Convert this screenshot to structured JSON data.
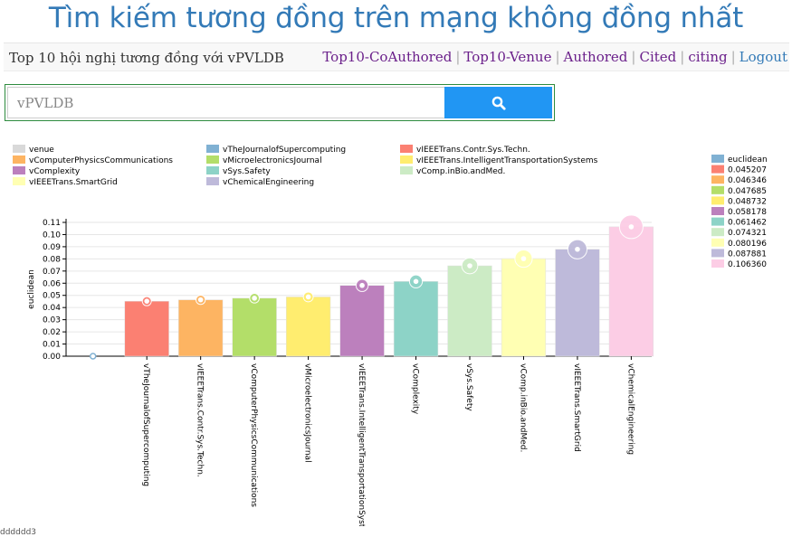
{
  "page": {
    "title": "Tìm kiếm tương đồng trên mạng không đồng nhất",
    "subtitle": "Top 10 hội nghị tương đồng với vPVLDB",
    "footer_text": "dddddd3"
  },
  "nav": {
    "items": [
      "Top10-CoAuthored",
      "Top10-Venue",
      "Authored",
      "Cited",
      "citing",
      "Logout"
    ],
    "separator": "|"
  },
  "search": {
    "placeholder": "vPVLDB",
    "value": ""
  },
  "colors": {
    "title": "#337ab7",
    "search_button": "#2196f3",
    "nav_link": "#6a1f8a"
  },
  "chart_data": {
    "type": "bar",
    "ylabel": "euclidean",
    "ylim": [
      0,
      0.11
    ],
    "yticks": [
      "0.00",
      "0.01",
      "0.02",
      "0.03",
      "0.04",
      "0.05",
      "0.06",
      "0.07",
      "0.08",
      "0.09",
      "0.10",
      "0.11"
    ],
    "categories": [
      "vTheJournalofSupercomputing",
      "vIEEETrans.Contr.Sys.Techn.",
      "vComputerPhysicsCommunications",
      "vMicroelectronicsJournal",
      "vIEEETrans.IntelligentTransportationSystems",
      "vComplexity",
      "vSys.Safety",
      "vComp.inBio.andMed.",
      "vIEEETrans.SmartGrid",
      "vChemicalEngineering"
    ],
    "values": [
      0.045207,
      0.046346,
      0.047685,
      0.048732,
      0.058178,
      0.061462,
      0.074321,
      0.080196,
      0.087881,
      0.10636
    ],
    "bar_colors": [
      "#fb8072",
      "#fdb462",
      "#b3de69",
      "#ffed6f",
      "#bc80bd",
      "#8dd3c7",
      "#ccebc5",
      "#ffffb3",
      "#bebada",
      "#fccde5"
    ],
    "origin_point": 0,
    "top_legend": {
      "title": "venue",
      "entries": [
        {
          "label": "venue",
          "color": "#d9d9d9"
        },
        {
          "label": "vTheJournalofSupercomputing",
          "color": "#80b1d3"
        },
        {
          "label": "vIEEETrans.Contr.Sys.Techn.",
          "color": "#fb8072"
        },
        {
          "label": "vComputerPhysicsCommunications",
          "color": "#fdb462"
        },
        {
          "label": "vMicroelectronicsJournal",
          "color": "#b3de69"
        },
        {
          "label": "vIEEETrans.IntelligentTransportationSystems",
          "color": "#ffed6f"
        },
        {
          "label": "vComplexity",
          "color": "#bc80bd"
        },
        {
          "label": "vSys.Safety",
          "color": "#8dd3c7"
        },
        {
          "label": "vComp.inBio.andMed.",
          "color": "#ccebc5"
        },
        {
          "label": "vIEEETrans.SmartGrid",
          "color": "#ffffb3"
        },
        {
          "label": "vChemicalEngineering",
          "color": "#bebada"
        }
      ]
    },
    "right_legend": {
      "entries": [
        {
          "label": "euclidean",
          "color": "#80b1d3"
        },
        {
          "label": "0.045207",
          "color": "#fb8072"
        },
        {
          "label": "0.046346",
          "color": "#fdb462"
        },
        {
          "label": "0.047685",
          "color": "#b3de69"
        },
        {
          "label": "0.048732",
          "color": "#ffed6f"
        },
        {
          "label": "0.058178",
          "color": "#bc80bd"
        },
        {
          "label": "0.061462",
          "color": "#8dd3c7"
        },
        {
          "label": "0.074321",
          "color": "#ccebc5"
        },
        {
          "label": "0.080196",
          "color": "#ffffb3"
        },
        {
          "label": "0.087881",
          "color": "#bebada"
        },
        {
          "label": "0.106360",
          "color": "#fccde5"
        }
      ]
    },
    "legend_placement": [
      "top",
      "right"
    ],
    "grid": true
  }
}
